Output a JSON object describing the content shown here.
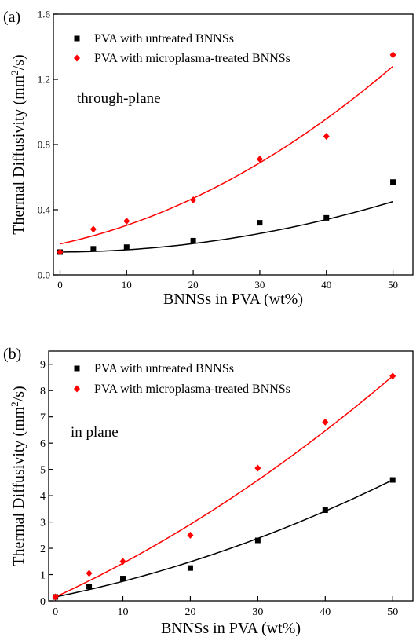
{
  "chart_data": [
    {
      "type": "scatter",
      "panel_label": "(a)",
      "annotation": "through-plane",
      "xlabel": "BNNSs in PVA (wt%)",
      "ylabel": "Thermal Diffusivity (mm",
      "ylabel_sup": "2",
      "ylabel_tail": "/s)",
      "xlim": [
        -1,
        53
      ],
      "ylim": [
        0,
        1.6
      ],
      "xticks": [
        0,
        10,
        20,
        30,
        40,
        50
      ],
      "xtick_labels": [
        "0",
        "10",
        "20",
        "30",
        "40",
        "50"
      ],
      "yticks": [
        0,
        0.4,
        0.8,
        1.2,
        1.6
      ],
      "ytick_labels": [
        "0.0",
        "0.4",
        "0.8",
        "1.2",
        "1.6"
      ],
      "legend_placement": "top-left",
      "series": [
        {
          "name": "PVA with untreated BNNSs",
          "marker": "square",
          "color": "#000000",
          "x": [
            0,
            5,
            10,
            20,
            30,
            40,
            50
          ],
          "y": [
            0.14,
            0.16,
            0.17,
            0.21,
            0.32,
            0.35,
            0.57
          ],
          "fit": [
            0.14,
            0.0002,
            0.00012
          ]
        },
        {
          "name": "PVA with microplasma-treated BNNSs",
          "marker": "diamond",
          "color": "#ff0000",
          "x": [
            0,
            5,
            10,
            20,
            30,
            40,
            50
          ],
          "y": [
            0.14,
            0.28,
            0.33,
            0.46,
            0.71,
            0.85,
            1.35
          ],
          "fit": [
            0.19,
            0.0088,
            0.00026
          ]
        }
      ]
    },
    {
      "type": "scatter",
      "panel_label": "(b)",
      "annotation": "in plane",
      "xlabel": "BNNSs in PVA (wt%)",
      "ylabel": "Thermal Diffusivity (mm",
      "ylabel_sup": "2",
      "ylabel_tail": "/s)",
      "xlim": [
        -1,
        53
      ],
      "ylim": [
        0,
        9.5
      ],
      "xticks": [
        0,
        10,
        20,
        30,
        40,
        50
      ],
      "xtick_labels": [
        "0",
        "10",
        "20",
        "30",
        "40",
        "50"
      ],
      "yticks": [
        0,
        1,
        2,
        3,
        4,
        5,
        6,
        7,
        8,
        9
      ],
      "ytick_labels": [
        "0",
        "1",
        "2",
        "3",
        "4",
        "5",
        "6",
        "7",
        "8",
        "9"
      ],
      "legend_placement": "top-left",
      "series": [
        {
          "name": "PVA with untreated BNNSs",
          "marker": "square",
          "color": "#000000",
          "x": [
            0,
            5,
            10,
            20,
            30,
            40,
            50
          ],
          "y": [
            0.15,
            0.55,
            0.85,
            1.25,
            2.3,
            3.45,
            4.6
          ],
          "fit": [
            0.15,
            0.052,
            0.00074
          ]
        },
        {
          "name": "PVA with microplasma-treated BNNSs",
          "marker": "diamond",
          "color": "#ff0000",
          "x": [
            0,
            5,
            10,
            20,
            30,
            40,
            50
          ],
          "y": [
            0.15,
            1.05,
            1.5,
            2.5,
            5.05,
            6.8,
            8.55
          ],
          "fit": [
            0.15,
            0.118,
            0.001
          ]
        }
      ]
    }
  ]
}
